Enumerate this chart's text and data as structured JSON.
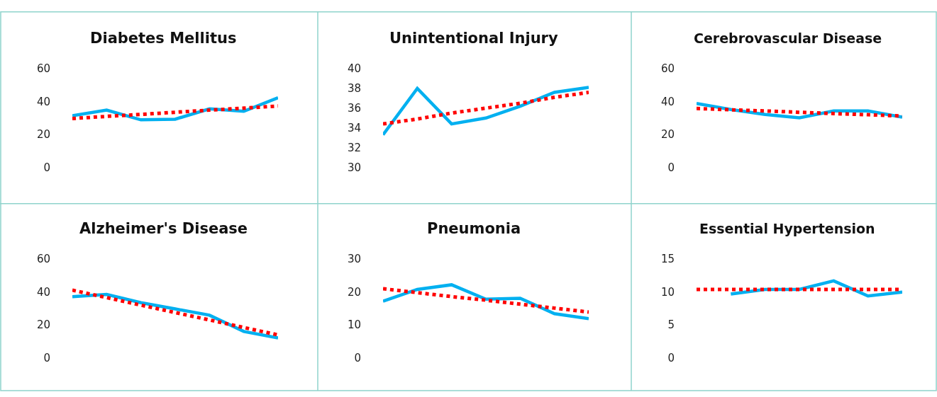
{
  "chart_data": [
    {
      "type": "line",
      "title": "Diabetes Mellitus",
      "categories": [
        null,
        null,
        null,
        null,
        null,
        null,
        null
      ],
      "ylim": [
        0,
        60
      ],
      "yticks": [
        0,
        20,
        40,
        60
      ],
      "tick_labels": "y",
      "series": [
        {
          "color": "#00b0f0",
          "line_style": "solid",
          "values": [
            31.4,
            34.8,
            28.9,
            29.3,
            35.6,
            34.1,
            42.3
          ]
        },
        {
          "color": "#ff0000",
          "line_style": "dotted",
          "values": [
            29.7,
            31.0,
            32.2,
            33.5,
            34.8,
            36.0,
            37.3
          ]
        }
      ]
    },
    {
      "type": "line",
      "title": "Unintentional Injury",
      "categories": [
        null,
        null,
        null,
        null,
        null,
        null,
        null
      ],
      "ylim": [
        30,
        40
      ],
      "yticks": [
        30,
        32,
        34,
        36,
        38,
        40
      ],
      "tick_labels": "y",
      "series": [
        {
          "color": "#00b0f0",
          "line_style": "solid",
          "values": [
            33.3,
            38.0,
            34.4,
            35.0,
            36.2,
            37.6,
            38.1
          ]
        },
        {
          "color": "#ff0000",
          "line_style": "dotted",
          "values": [
            34.4,
            34.9,
            35.5,
            36.0,
            36.5,
            37.1,
            37.6
          ]
        }
      ]
    },
    {
      "type": "line",
      "title": "Cerebrovascular Disease",
      "categories": [
        null,
        null,
        null,
        null,
        null,
        null,
        null
      ],
      "ylim": [
        0,
        60
      ],
      "yticks": [
        0,
        20,
        40,
        60
      ],
      "tick_labels": "y",
      "series": [
        {
          "color": "#00b0f0",
          "line_style": "solid",
          "values": [
            38.8,
            35.2,
            32.2,
            30.1,
            34.3,
            34.3,
            30.5
          ]
        },
        {
          "color": "#ff0000",
          "line_style": "dotted",
          "values": [
            35.8,
            35.0,
            34.3,
            33.5,
            32.7,
            32.0,
            31.2
          ]
        }
      ]
    },
    {
      "type": "line",
      "title": "Alzheimer's Disease",
      "categories": [
        null,
        null,
        null,
        null,
        null,
        null,
        null
      ],
      "ylim": [
        0,
        60
      ],
      "yticks": [
        0,
        20,
        40,
        60
      ],
      "tick_labels": "y",
      "series": [
        {
          "color": "#00b0f0",
          "line_style": "solid",
          "values": [
            37.1,
            38.5,
            33.5,
            29.7,
            25.9,
            16.0,
            12.0
          ]
        },
        {
          "color": "#ff0000",
          "line_style": "dotted",
          "values": [
            41.1,
            36.6,
            32.0,
            27.5,
            23.0,
            18.4,
            13.9
          ]
        }
      ]
    },
    {
      "type": "line",
      "title": "Pneumonia",
      "categories": [
        null,
        null,
        null,
        null,
        null,
        null,
        null
      ],
      "ylim": [
        0,
        30
      ],
      "yticks": [
        0,
        10,
        20,
        30
      ],
      "tick_labels": "y",
      "series": [
        {
          "color": "#00b0f0",
          "line_style": "solid",
          "values": [
            17.2,
            20.8,
            22.2,
            17.8,
            18.1,
            13.4,
            11.9
          ]
        },
        {
          "color": "#ff0000",
          "line_style": "dotted",
          "values": [
            21.0,
            19.8,
            18.6,
            17.5,
            16.3,
            15.1,
            13.9
          ]
        }
      ]
    },
    {
      "type": "line",
      "title": "Essential Hypertension",
      "categories": [
        null,
        null,
        null,
        null,
        null,
        null,
        null
      ],
      "ylim": [
        0,
        15
      ],
      "yticks": [
        0,
        5,
        10,
        15
      ],
      "tick_labels": "y",
      "series": [
        {
          "color": "#00b0f0",
          "line_style": "solid",
          "values": [
            null,
            9.7,
            10.4,
            10.4,
            11.7,
            9.4,
            10.0
          ]
        },
        {
          "color": "#ff0000",
          "line_style": "dotted",
          "values": [
            10.4,
            10.4,
            10.4,
            10.4,
            10.4,
            10.4,
            10.4
          ]
        }
      ]
    }
  ]
}
